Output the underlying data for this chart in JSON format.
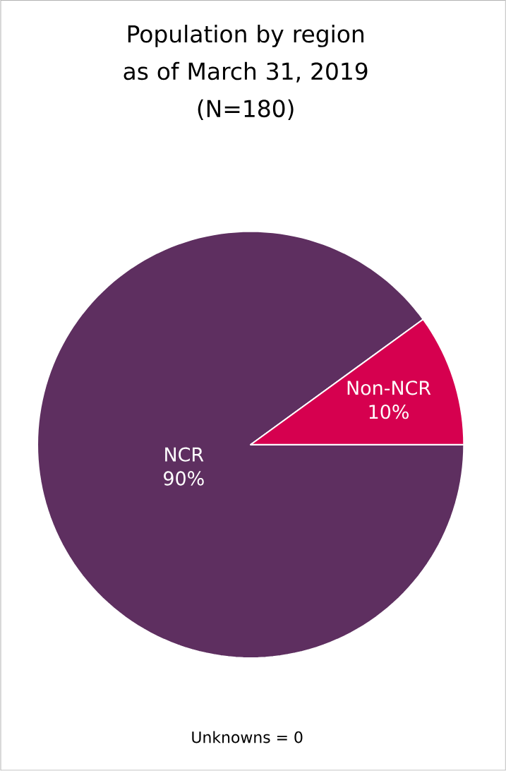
{
  "chart_data": {
    "type": "pie",
    "title": "Population by region as of March 31, 2019",
    "subtitle": "(N=180)",
    "categories": [
      "NCR",
      "Non-NCR"
    ],
    "values": [
      90,
      10
    ],
    "colors": [
      "#5e2f60",
      "#d6004f"
    ],
    "value_labels": [
      "90%",
      "10%"
    ],
    "annotations": [
      "Unknowns = 0"
    ]
  }
}
